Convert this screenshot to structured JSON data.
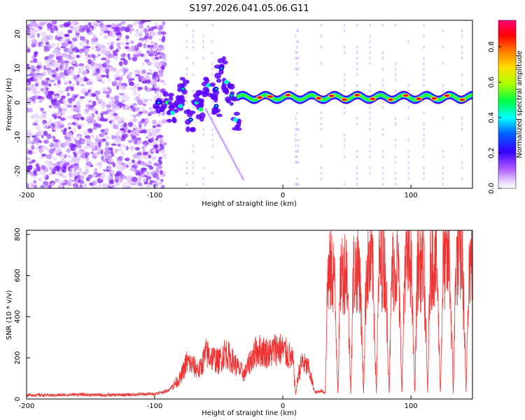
{
  "title": "S197.2026.041.05.06.G11",
  "chart_data": [
    {
      "type": "heatmap",
      "xlabel": "Height of straight line (km)",
      "ylabel": "Frequency (Hz)",
      "xlim": [
        -200,
        148
      ],
      "ylim": [
        -25,
        24
      ],
      "xticks": [
        -200,
        -100,
        0,
        100
      ],
      "yticks": [
        -20,
        -10,
        0,
        10,
        20
      ],
      "grid": false,
      "colorbar": {
        "label": "Normalized spectral amplitude",
        "range": [
          0,
          0.95
        ],
        "ticks": [
          0.0,
          0.2,
          0.4,
          0.6,
          0.8
        ],
        "tick_labels": [
          "0.0",
          "0.2",
          "0.4",
          "0.6",
          "0.8"
        ],
        "colors": [
          "#ffffff",
          "#cc99ff",
          "#8800ff",
          "#0000ff",
          "#00ffff",
          "#00ff00",
          "#ffff00",
          "#ff8800",
          "#ff0000",
          "#ff0066"
        ]
      },
      "features": {
        "noise_region_x": [
          -200,
          -100
        ],
        "scatter_region_x": [
          -100,
          -35
        ],
        "tone_band_x": [
          -35,
          148
        ],
        "tone_frequency_hz": 1.5,
        "hot_spots_x": [
          -18,
          -10,
          4,
          28,
          38,
          48,
          58,
          70,
          84,
          96,
          106,
          118,
          128,
          140
        ]
      }
    },
    {
      "type": "line",
      "xlabel": "Height of straight line (km)",
      "ylabel": "SNR (10 * v/v)",
      "xlim": [
        -200,
        148
      ],
      "ylim": [
        0,
        820
      ],
      "xticks": [
        -200,
        -100,
        0,
        100
      ],
      "yticks": [
        0,
        200,
        400,
        600,
        800
      ],
      "grid": false,
      "series": [
        {
          "name": "SNR",
          "color": "#ee3333",
          "x": [
            -200,
            -180,
            -160,
            -140,
            -120,
            -100,
            -90,
            -85,
            -80,
            -75,
            -70,
            -65,
            -60,
            -55,
            -50,
            -45,
            -40,
            -35,
            -30,
            -25,
            -20,
            -15,
            -10,
            -5,
            0,
            5,
            8,
            10,
            12,
            15,
            18,
            20,
            25,
            30,
            33,
            35,
            40,
            43,
            45,
            50,
            53,
            55,
            60,
            63,
            65,
            70,
            73,
            75,
            80,
            83,
            85,
            90,
            93,
            95,
            100,
            103,
            105,
            110,
            113,
            115,
            120,
            123,
            125,
            130,
            133,
            135,
            140,
            143,
            145,
            148
          ],
          "values": [
            20,
            18,
            22,
            19,
            21,
            25,
            40,
            70,
            100,
            180,
            160,
            140,
            220,
            200,
            180,
            230,
            190,
            150,
            120,
            190,
            240,
            230,
            220,
            250,
            235,
            210,
            180,
            20,
            120,
            180,
            160,
            150,
            30,
            40,
            30,
            600,
            620,
            30,
            610,
            640,
            30,
            620,
            640,
            30,
            630,
            650,
            30,
            660,
            640,
            30,
            620,
            660,
            30,
            640,
            670,
            30,
            650,
            640,
            30,
            660,
            680,
            30,
            640,
            670,
            30,
            660,
            690,
            30,
            650,
            670
          ]
        }
      ]
    }
  ]
}
